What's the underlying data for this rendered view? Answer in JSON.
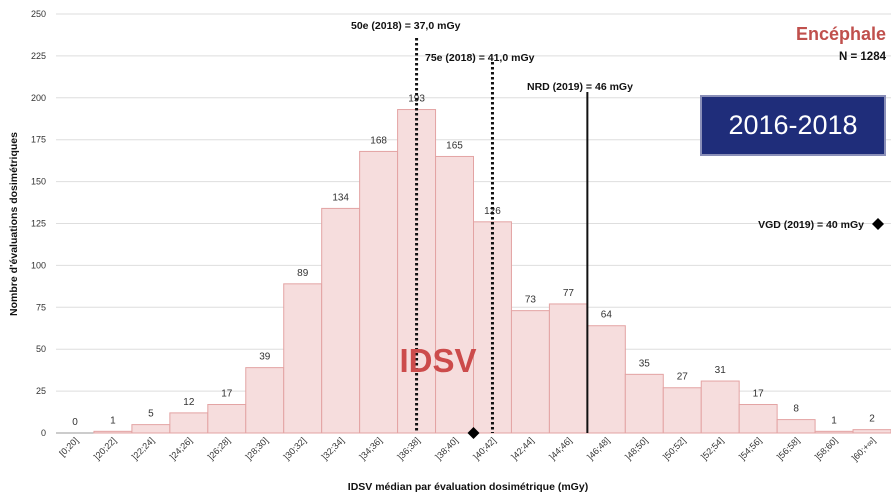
{
  "chart_data": {
    "type": "bar",
    "title": "Encéphale",
    "n_label": "N = 1284",
    "badge": "2016-2018",
    "watermark": "IDSV",
    "xlabel": "IDSV médian par évaluation dosimétrique (mGy)",
    "ylabel": "Nombre d'évaluations dosimétriques",
    "ylim": [
      0,
      250
    ],
    "yticks": [
      0,
      25,
      50,
      75,
      100,
      125,
      150,
      175,
      200,
      225,
      250
    ],
    "grid": true,
    "categories": [
      "[0;20]",
      "]20;22]",
      "]22;24]",
      "]24;26]",
      "]26;28]",
      "]28;30]",
      "]30;32]",
      "]32;34]",
      "]34;36]",
      "]36;38]",
      "]38;40]",
      "]40;42]",
      "]42;44]",
      "]44;46]",
      "]46;48]",
      "]48;50]",
      "]50;52]",
      "]52;54]",
      "]54;56]",
      "]56;58]",
      "]58;60]",
      "]60;+∞]"
    ],
    "values": [
      0,
      1,
      5,
      12,
      17,
      39,
      89,
      134,
      168,
      193,
      165,
      126,
      73,
      77,
      64,
      35,
      27,
      31,
      17,
      8,
      1,
      2
    ],
    "bar_color": "#f6dddd",
    "bar_edge_color": "#e3a3a3",
    "reference_lines": [
      {
        "label": "50e (2018) = 37,0 mGy",
        "x": 37.0,
        "style": "dotted"
      },
      {
        "label": "75e (2018) = 41,0 mGy",
        "x": 41.0,
        "style": "dotted"
      },
      {
        "label": "NRD (2019) = 46 mGy",
        "x": 46.0,
        "style": "solid"
      }
    ],
    "markers": [
      {
        "label": "VGD (2019) = 40 mGy",
        "x": 40,
        "shape": "diamond"
      }
    ]
  }
}
